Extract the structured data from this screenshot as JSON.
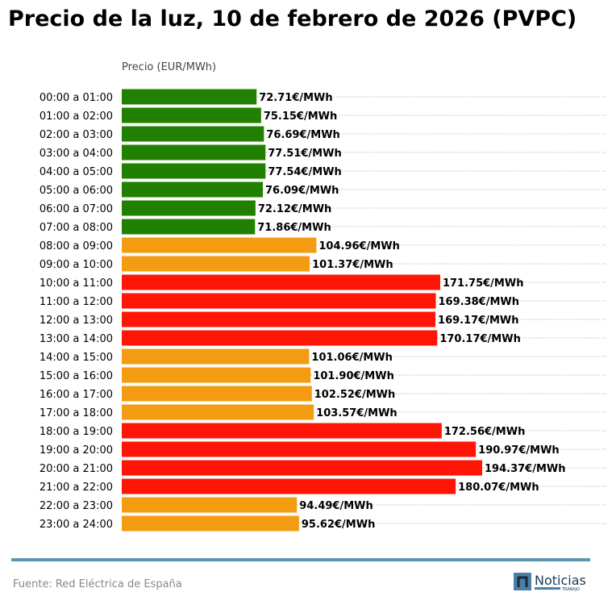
{
  "chart_data": {
    "type": "bar",
    "orientation": "horizontal",
    "title": "Precio de la luz, 10 de febrero de 2026 (PVPC)",
    "xlabel": "Precio (EUR/MWh)",
    "ylabel": "",
    "value_suffix": "€/MWh",
    "xlim": [
      0,
      262
    ],
    "grid": "horizontal dotted",
    "categories": [
      "00:00 a 01:00",
      "01:00 a 02:00",
      "02:00 a 03:00",
      "03:00 a 04:00",
      "04:00 a 05:00",
      "05:00 a 06:00",
      "06:00 a 07:00",
      "07:00 a 08:00",
      "08:00 a 09:00",
      "09:00 a 10:00",
      "10:00 a 11:00",
      "11:00 a 12:00",
      "12:00 a 13:00",
      "13:00 a 14:00",
      "14:00 a 15:00",
      "15:00 a 16:00",
      "16:00 a 17:00",
      "17:00 a 18:00",
      "18:00 a 19:00",
      "19:00 a 20:00",
      "20:00 a 21:00",
      "21:00 a 22:00",
      "22:00 a 23:00",
      "23:00 a 24:00"
    ],
    "values": [
      72.71,
      75.15,
      76.69,
      77.51,
      77.54,
      76.09,
      72.12,
      71.86,
      104.96,
      101.37,
      171.75,
      169.38,
      169.17,
      170.17,
      101.06,
      101.9,
      102.52,
      103.57,
      172.56,
      190.97,
      194.37,
      180.07,
      94.49,
      95.62
    ],
    "data_labels": [
      "72.71€/MWh",
      "75.15€/MWh",
      "76.69€/MWh",
      "77.51€/MWh",
      "77.54€/MWh",
      "76.09€/MWh",
      "72.12€/MWh",
      "71.86€/MWh",
      "104.96€/MWh",
      "101.37€/MWh",
      "171.75€/MWh",
      "169.38€/MWh",
      "169.17€/MWh",
      "170.17€/MWh",
      "101.06€/MWh",
      "101.90€/MWh",
      "102.52€/MWh",
      "103.57€/MWh",
      "172.56€/MWh",
      "190.97€/MWh",
      "194.37€/MWh",
      "180.07€/MWh",
      "94.49€/MWh",
      "95.62€/MWh"
    ],
    "levels": [
      "low",
      "low",
      "low",
      "low",
      "low",
      "low",
      "low",
      "low",
      "mid",
      "mid",
      "high",
      "high",
      "high",
      "high",
      "mid",
      "mid",
      "mid",
      "mid",
      "high",
      "high",
      "high",
      "high",
      "mid",
      "mid"
    ],
    "colors": {
      "low": "#228000",
      "mid": "#f39c12",
      "high": "#ff1505",
      "footer_line": "#5b95b0"
    }
  },
  "footer": {
    "source": "Fuente: Red Eléctrica de España",
    "logo_text": "Noticias",
    "logo_subtext": "TRABAJO"
  }
}
